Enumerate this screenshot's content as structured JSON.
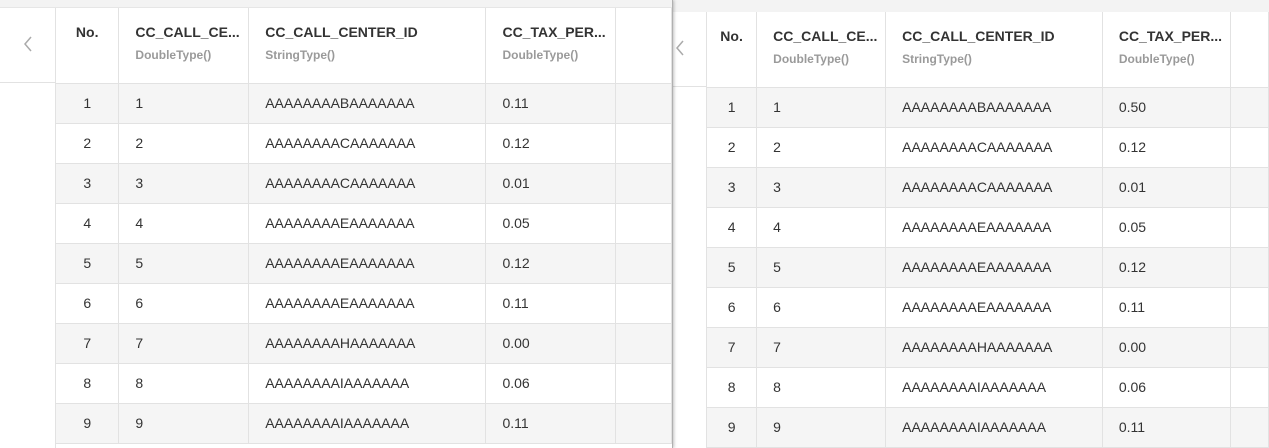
{
  "headers": {
    "no": "No.",
    "col_a": {
      "name": "CC_CALL_CE...",
      "type": "DoubleType()"
    },
    "col_b": {
      "name": "CC_CALL_CENTER_ID",
      "type": "StringType()"
    },
    "col_c": {
      "name": "CC_TAX_PER...",
      "type": "DoubleType()"
    }
  },
  "left_table": {
    "rows": [
      {
        "no": "1",
        "a": "1",
        "b": "AAAAAAAABAAAAAAA",
        "c": "0.11"
      },
      {
        "no": "2",
        "a": "2",
        "b": "AAAAAAAACAAAAAAA",
        "c": "0.12"
      },
      {
        "no": "3",
        "a": "3",
        "b": "AAAAAAAACAAAAAAA",
        "c": "0.01"
      },
      {
        "no": "4",
        "a": "4",
        "b": "AAAAAAAAEAAAAAAA",
        "c": "0.05"
      },
      {
        "no": "5",
        "a": "5",
        "b": "AAAAAAAAEAAAAAAA",
        "c": "0.12"
      },
      {
        "no": "6",
        "a": "6",
        "b": "AAAAAAAAEAAAAAAA",
        "c": "0.11"
      },
      {
        "no": "7",
        "a": "7",
        "b": "AAAAAAAAHAAAAAAA",
        "c": "0.00"
      },
      {
        "no": "8",
        "a": "8",
        "b": "AAAAAAAAIAAAAAAA",
        "c": "0.06"
      },
      {
        "no": "9",
        "a": "9",
        "b": "AAAAAAAAIAAAAAAA",
        "c": "0.11"
      }
    ]
  },
  "right_table": {
    "rows": [
      {
        "no": "1",
        "a": "1",
        "b": "AAAAAAAABAAAAAAA",
        "c": "0.50"
      },
      {
        "no": "2",
        "a": "2",
        "b": "AAAAAAAACAAAAAAA",
        "c": "0.12"
      },
      {
        "no": "3",
        "a": "3",
        "b": "AAAAAAAACAAAAAAA",
        "c": "0.01"
      },
      {
        "no": "4",
        "a": "4",
        "b": "AAAAAAAAEAAAAAAA",
        "c": "0.05"
      },
      {
        "no": "5",
        "a": "5",
        "b": "AAAAAAAAEAAAAAAA",
        "c": "0.12"
      },
      {
        "no": "6",
        "a": "6",
        "b": "AAAAAAAAEAAAAAAA",
        "c": "0.11"
      },
      {
        "no": "7",
        "a": "7",
        "b": "AAAAAAAAHAAAAAAA",
        "c": "0.00"
      },
      {
        "no": "8",
        "a": "8",
        "b": "AAAAAAAAIAAAAAAA",
        "c": "0.06"
      },
      {
        "no": "9",
        "a": "9",
        "b": "AAAAAAAAIAAAAAAA",
        "c": "0.11"
      }
    ]
  },
  "icons": {
    "back": "chevron-left-icon"
  },
  "colors": {
    "header_text": "#333333",
    "type_text": "#9a9a9a",
    "stripe": "#f5f5f5",
    "border": "#e2e2e2"
  }
}
